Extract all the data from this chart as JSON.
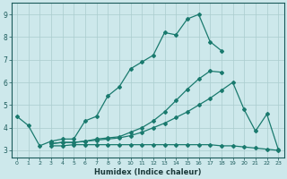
{
  "line1_x": [
    0,
    1,
    2,
    3,
    4,
    5,
    6,
    7,
    8,
    9,
    10,
    11,
    12,
    13,
    14,
    15,
    16,
    17,
    18
  ],
  "line1_y": [
    4.5,
    4.1,
    3.2,
    3.4,
    3.5,
    3.5,
    4.3,
    4.5,
    5.4,
    5.8,
    6.6,
    6.9,
    7.2,
    8.2,
    8.1,
    8.8,
    9.0,
    7.8,
    7.4
  ],
  "line2_x": [
    3,
    4,
    5,
    6,
    7,
    8,
    9,
    10,
    11,
    12,
    13,
    14,
    15,
    16,
    17,
    18
  ],
  "line2_y": [
    3.3,
    3.35,
    3.35,
    3.4,
    3.5,
    3.55,
    3.6,
    3.8,
    4.0,
    4.3,
    4.7,
    5.2,
    5.7,
    6.15,
    6.5,
    6.45
  ],
  "line3_x": [
    3,
    4,
    5,
    6,
    7,
    8,
    9,
    10,
    11,
    12,
    13,
    14,
    15,
    16,
    17,
    18,
    19,
    20,
    21,
    22,
    23
  ],
  "line3_y": [
    3.3,
    3.35,
    3.35,
    3.4,
    3.45,
    3.5,
    3.55,
    3.65,
    3.8,
    4.0,
    4.2,
    4.45,
    4.7,
    5.0,
    5.3,
    5.65,
    6.0,
    4.8,
    3.85,
    4.6,
    3.05
  ],
  "line4_x": [
    3,
    4,
    5,
    6,
    7,
    8,
    9,
    10,
    11,
    12,
    13,
    14,
    15,
    16,
    17,
    18,
    19,
    20,
    21,
    22,
    23
  ],
  "line4_y": [
    3.2,
    3.2,
    3.25,
    3.25,
    3.25,
    3.25,
    3.25,
    3.25,
    3.25,
    3.25,
    3.25,
    3.25,
    3.25,
    3.25,
    3.25,
    3.2,
    3.2,
    3.15,
    3.1,
    3.05,
    3.0
  ],
  "line_color": "#1a7a6e",
  "bg_color": "#cde8eb",
  "grid_color": "#aaccce",
  "xlabel": "Humidex (Indice chaleur)",
  "ylim": [
    2.7,
    9.5
  ],
  "xlim": [
    -0.5,
    23.5
  ],
  "xticks": [
    0,
    1,
    2,
    3,
    4,
    5,
    6,
    7,
    8,
    9,
    10,
    11,
    12,
    13,
    14,
    15,
    16,
    17,
    18,
    19,
    20,
    21,
    22,
    23
  ],
  "yticks": [
    3,
    4,
    5,
    6,
    7,
    8,
    9
  ]
}
